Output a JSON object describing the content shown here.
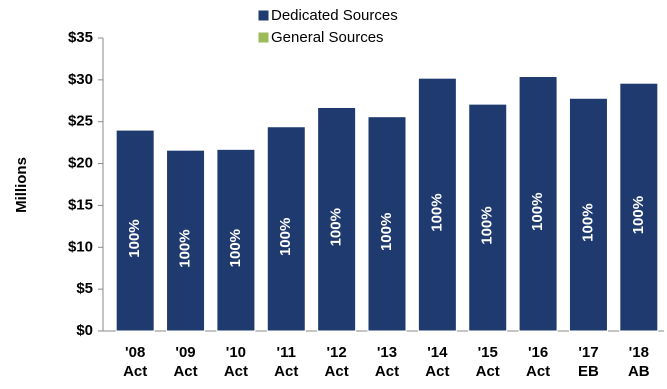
{
  "chart_data": {
    "type": "stacked_bar",
    "y_label": "Millions",
    "categories": [
      "'08 Act",
      "'09 Act",
      "'10 Act",
      "'11 Act",
      "'12 Act",
      "'13 Act",
      "'14 Act",
      "'15 Act",
      "'16 Act",
      "'17 EB",
      "'18 AB"
    ],
    "series": [
      {
        "name": "Dedicated Sources",
        "color": "#1f3a6e",
        "values": [
          24.0,
          21.6,
          21.7,
          24.4,
          26.7,
          25.6,
          30.2,
          27.1,
          30.4,
          27.8,
          29.6
        ],
        "data_labels": [
          "100%",
          "100%",
          "100%",
          "100%",
          "100%",
          "100%",
          "100%",
          "100%",
          "100%",
          "100%",
          "100%"
        ]
      },
      {
        "name": "General Sources",
        "color": "#9bbb59",
        "values": [
          0,
          0,
          0,
          0,
          0,
          0,
          0,
          0,
          0,
          0,
          0
        ]
      }
    ],
    "ylim": [
      0,
      35
    ],
    "yticks": [
      {
        "value": 0,
        "label": "$0"
      },
      {
        "value": 5,
        "label": "$5"
      },
      {
        "value": 10,
        "label": "$10"
      },
      {
        "value": 15,
        "label": "$15"
      },
      {
        "value": 20,
        "label": "$20"
      },
      {
        "value": 25,
        "label": "$25"
      },
      {
        "value": 30,
        "label": "$30"
      },
      {
        "value": 35,
        "label": "$35"
      }
    ],
    "grid": false
  }
}
